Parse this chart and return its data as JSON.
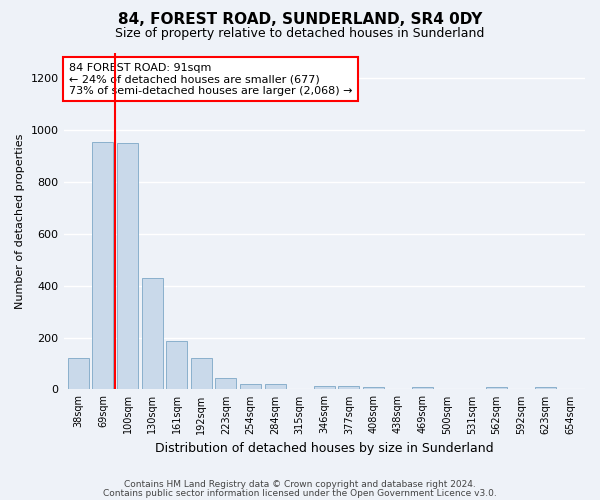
{
  "title": "84, FOREST ROAD, SUNDERLAND, SR4 0DY",
  "subtitle": "Size of property relative to detached houses in Sunderland",
  "xlabel": "Distribution of detached houses by size in Sunderland",
  "ylabel": "Number of detached properties",
  "bar_labels": [
    "38sqm",
    "69sqm",
    "100sqm",
    "130sqm",
    "161sqm",
    "192sqm",
    "223sqm",
    "254sqm",
    "284sqm",
    "315sqm",
    "346sqm",
    "377sqm",
    "408sqm",
    "438sqm",
    "469sqm",
    "500sqm",
    "531sqm",
    "562sqm",
    "592sqm",
    "623sqm",
    "654sqm"
  ],
  "bar_values": [
    120,
    955,
    950,
    430,
    185,
    120,
    45,
    20,
    20,
    0,
    15,
    15,
    10,
    0,
    10,
    0,
    0,
    10,
    0,
    10,
    0
  ],
  "bar_color": "#c9d9ea",
  "bar_edge_color": "#8ab0cc",
  "annotation_text": "84 FOREST ROAD: 91sqm\n← 24% of detached houses are smaller (677)\n73% of semi-detached houses are larger (2,068) →",
  "annotation_box_color": "white",
  "annotation_box_edge_color": "red",
  "vline_color": "red",
  "ylim": [
    0,
    1300
  ],
  "yticks": [
    0,
    200,
    400,
    600,
    800,
    1000,
    1200
  ],
  "footer_line1": "Contains HM Land Registry data © Crown copyright and database right 2024.",
  "footer_line2": "Contains public sector information licensed under the Open Government Licence v3.0.",
  "background_color": "#eef2f8",
  "grid_color": "white",
  "title_fontsize": 11,
  "subtitle_fontsize": 9,
  "ylabel_fontsize": 8,
  "xlabel_fontsize": 9,
  "tick_fontsize": 8,
  "xtick_fontsize": 7
}
